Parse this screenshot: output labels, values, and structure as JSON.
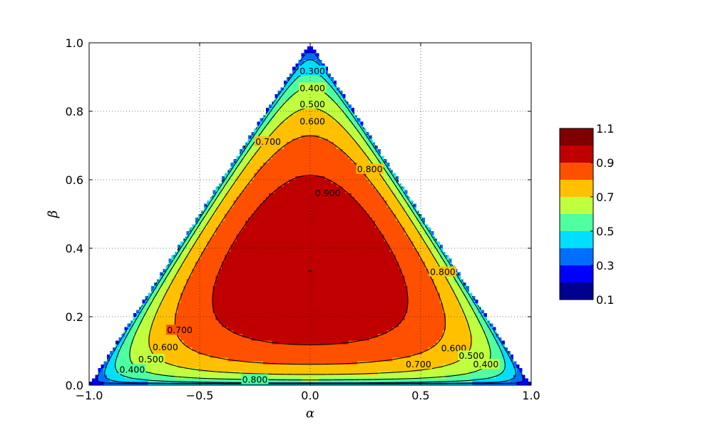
{
  "chart_data": {
    "type": "contour",
    "title": "",
    "xlabel": "α",
    "ylabel": "β",
    "xlim": [
      -1.0,
      1.0
    ],
    "ylim": [
      0.0,
      1.0
    ],
    "x_ticks": [
      "−1.0",
      "−0.5",
      "0.0",
      "0.5",
      "1.0"
    ],
    "x_tick_values": [
      -1.0,
      -0.5,
      0.0,
      0.5,
      1.0
    ],
    "y_ticks": [
      "0.0",
      "0.2",
      "0.4",
      "0.6",
      "0.8",
      "1.0"
    ],
    "y_tick_values": [
      0.0,
      0.2,
      0.4,
      0.6,
      0.8,
      1.0
    ],
    "grid": true,
    "domain": "triangle with vertices (-1, 0), (1, 0), (0, 1)",
    "peak": {
      "alpha": 0.0,
      "beta": 0.333,
      "value": 1.0
    },
    "filled_levels": [
      0.1,
      0.2,
      0.3,
      0.4,
      0.5,
      0.6,
      0.7,
      0.8,
      0.9,
      1.0,
      1.1
    ],
    "level_colors": [
      "#00008f",
      "#0000ff",
      "#006fff",
      "#00dfff",
      "#50ff9f",
      "#bfff3f",
      "#ffc000",
      "#ff5000",
      "#c00000",
      "#800000"
    ],
    "contour_lines": [
      {
        "level": 0.3,
        "label": "0.300"
      },
      {
        "level": 0.4,
        "label": "0.400"
      },
      {
        "level": 0.5,
        "label": "0.500"
      },
      {
        "level": 0.6,
        "label": "0.600"
      },
      {
        "level": 0.7,
        "label": "0.700"
      },
      {
        "level": 0.8,
        "label": "0.800"
      },
      {
        "level": 0.9,
        "label": "0.900"
      }
    ],
    "contour_label_positions": [
      {
        "text": "0.300",
        "alpha": 0.01,
        "beta": 0.917
      },
      {
        "text": "0.400",
        "alpha": 0.01,
        "beta": 0.867
      },
      {
        "text": "0.500",
        "alpha": 0.01,
        "beta": 0.82
      },
      {
        "text": "0.600",
        "alpha": 0.01,
        "beta": 0.77
      },
      {
        "text": "0.700",
        "alpha": -0.19,
        "beta": 0.71
      },
      {
        "text": "0.800",
        "alpha": 0.27,
        "beta": 0.63
      },
      {
        "text": "0.900",
        "alpha": 0.08,
        "beta": 0.56
      },
      {
        "text": "0.800",
        "alpha": 0.6,
        "beta": 0.33
      },
      {
        "text": "0.700",
        "alpha": -0.59,
        "beta": 0.16
      },
      {
        "text": "0.600",
        "alpha": -0.655,
        "beta": 0.11
      },
      {
        "text": "0.500",
        "alpha": -0.72,
        "beta": 0.075
      },
      {
        "text": "0.400",
        "alpha": -0.805,
        "beta": 0.045
      },
      {
        "text": "0.800",
        "alpha": -0.25,
        "beta": 0.016
      },
      {
        "text": "0.700",
        "alpha": 0.49,
        "beta": 0.06
      },
      {
        "text": "0.600",
        "alpha": 0.65,
        "beta": 0.107
      },
      {
        "text": "0.500",
        "alpha": 0.73,
        "beta": 0.085
      },
      {
        "text": "0.400",
        "alpha": 0.795,
        "beta": 0.06
      }
    ],
    "colorbar": {
      "tick_labels": [
        "0.1",
        "0.3",
        "0.5",
        "0.7",
        "0.9",
        "1.1"
      ],
      "tick_values": [
        0.1,
        0.3,
        0.5,
        0.7,
        0.9,
        1.1
      ]
    }
  }
}
